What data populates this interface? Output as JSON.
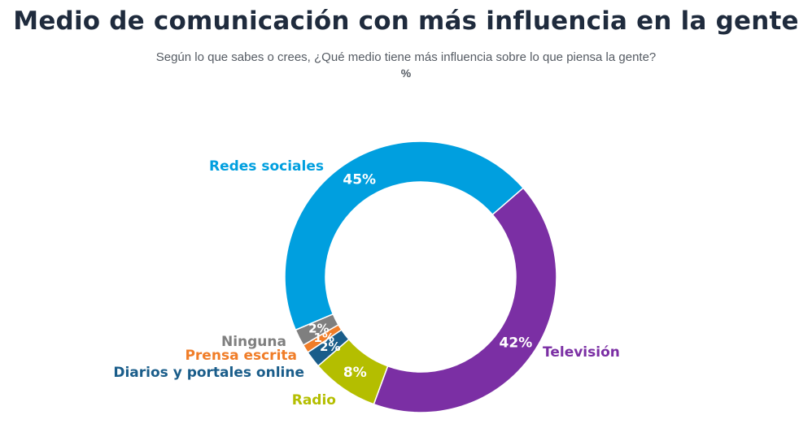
{
  "title": "Medio de comunicación con más influencia en la gente",
  "subtitle": "Según lo que sabes o crees, ¿Qué medio tiene más influencia sobre lo que piensa la gente?",
  "unit": "%",
  "chart_data": {
    "type": "pie",
    "donut": true,
    "title": "Medio de comunicación con más influencia en la gente",
    "subtitle": "Según lo que sabes o crees, ¿Qué medio tiene más influencia sobre lo que piensa la gente?",
    "unit": "%",
    "slices": [
      {
        "key": "television",
        "label": "Televisión",
        "value": 42,
        "value_label": "42%",
        "color": "#7b2fa4"
      },
      {
        "key": "radio",
        "label": "Radio",
        "value": 8,
        "value_label": "8%",
        "color": "#b4be00"
      },
      {
        "key": "diarios",
        "label": "Diarios y portales online",
        "value": 2,
        "value_label": "2%",
        "color": "#1a5d8a"
      },
      {
        "key": "prensa",
        "label": "Prensa escrita",
        "value": 1,
        "value_label": "1%",
        "color": "#f07d28"
      },
      {
        "key": "ninguna",
        "label": "Ninguna",
        "value": 2,
        "value_label": "2%",
        "color": "#7f7f7f"
      },
      {
        "key": "redes",
        "label": "Redes sociales",
        "value": 45,
        "value_label": "45%",
        "color": "#009fdf"
      }
    ]
  }
}
